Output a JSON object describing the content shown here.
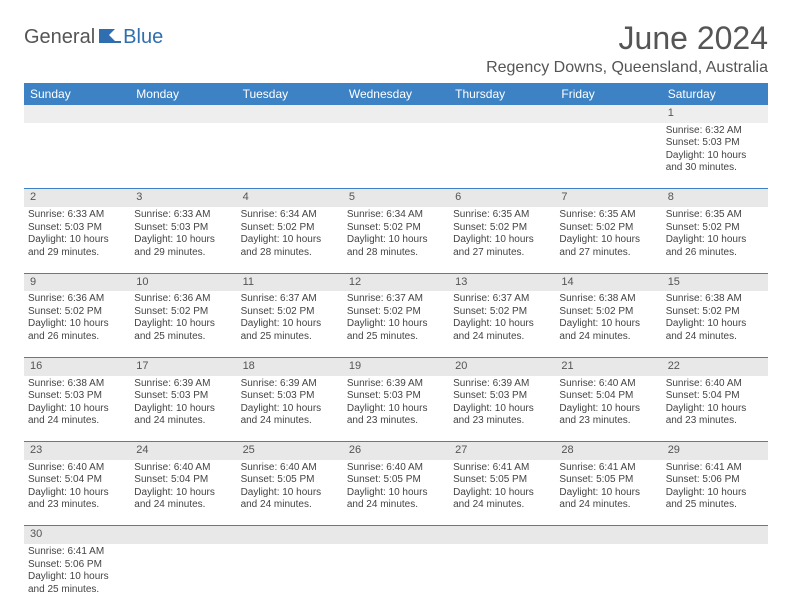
{
  "logo": {
    "general": "General",
    "blue": "Blue"
  },
  "title": "June 2024",
  "location": "Regency Downs, Queensland, Australia",
  "colors": {
    "header_bg": "#3d82c4",
    "header_fg": "#ffffff",
    "daynum_bg": "#e8e8e8",
    "rule": "#3d82c4",
    "title_color": "#555555"
  },
  "day_labels": [
    "Sunday",
    "Monday",
    "Tuesday",
    "Wednesday",
    "Thursday",
    "Friday",
    "Saturday"
  ],
  "weeks": [
    {
      "nums": [
        "",
        "",
        "",
        "",
        "",
        "",
        "1"
      ],
      "cells": [
        null,
        null,
        null,
        null,
        null,
        null,
        {
          "sunrise": "Sunrise: 6:32 AM",
          "sunset": "Sunset: 5:03 PM",
          "daylight": "Daylight: 10 hours and 30 minutes."
        }
      ]
    },
    {
      "nums": [
        "2",
        "3",
        "4",
        "5",
        "6",
        "7",
        "8"
      ],
      "cells": [
        {
          "sunrise": "Sunrise: 6:33 AM",
          "sunset": "Sunset: 5:03 PM",
          "daylight": "Daylight: 10 hours and 29 minutes."
        },
        {
          "sunrise": "Sunrise: 6:33 AM",
          "sunset": "Sunset: 5:03 PM",
          "daylight": "Daylight: 10 hours and 29 minutes."
        },
        {
          "sunrise": "Sunrise: 6:34 AM",
          "sunset": "Sunset: 5:02 PM",
          "daylight": "Daylight: 10 hours and 28 minutes."
        },
        {
          "sunrise": "Sunrise: 6:34 AM",
          "sunset": "Sunset: 5:02 PM",
          "daylight": "Daylight: 10 hours and 28 minutes."
        },
        {
          "sunrise": "Sunrise: 6:35 AM",
          "sunset": "Sunset: 5:02 PM",
          "daylight": "Daylight: 10 hours and 27 minutes."
        },
        {
          "sunrise": "Sunrise: 6:35 AM",
          "sunset": "Sunset: 5:02 PM",
          "daylight": "Daylight: 10 hours and 27 minutes."
        },
        {
          "sunrise": "Sunrise: 6:35 AM",
          "sunset": "Sunset: 5:02 PM",
          "daylight": "Daylight: 10 hours and 26 minutes."
        }
      ]
    },
    {
      "nums": [
        "9",
        "10",
        "11",
        "12",
        "13",
        "14",
        "15"
      ],
      "cells": [
        {
          "sunrise": "Sunrise: 6:36 AM",
          "sunset": "Sunset: 5:02 PM",
          "daylight": "Daylight: 10 hours and 26 minutes."
        },
        {
          "sunrise": "Sunrise: 6:36 AM",
          "sunset": "Sunset: 5:02 PM",
          "daylight": "Daylight: 10 hours and 25 minutes."
        },
        {
          "sunrise": "Sunrise: 6:37 AM",
          "sunset": "Sunset: 5:02 PM",
          "daylight": "Daylight: 10 hours and 25 minutes."
        },
        {
          "sunrise": "Sunrise: 6:37 AM",
          "sunset": "Sunset: 5:02 PM",
          "daylight": "Daylight: 10 hours and 25 minutes."
        },
        {
          "sunrise": "Sunrise: 6:37 AM",
          "sunset": "Sunset: 5:02 PM",
          "daylight": "Daylight: 10 hours and 24 minutes."
        },
        {
          "sunrise": "Sunrise: 6:38 AM",
          "sunset": "Sunset: 5:02 PM",
          "daylight": "Daylight: 10 hours and 24 minutes."
        },
        {
          "sunrise": "Sunrise: 6:38 AM",
          "sunset": "Sunset: 5:02 PM",
          "daylight": "Daylight: 10 hours and 24 minutes."
        }
      ]
    },
    {
      "nums": [
        "16",
        "17",
        "18",
        "19",
        "20",
        "21",
        "22"
      ],
      "cells": [
        {
          "sunrise": "Sunrise: 6:38 AM",
          "sunset": "Sunset: 5:03 PM",
          "daylight": "Daylight: 10 hours and 24 minutes."
        },
        {
          "sunrise": "Sunrise: 6:39 AM",
          "sunset": "Sunset: 5:03 PM",
          "daylight": "Daylight: 10 hours and 24 minutes."
        },
        {
          "sunrise": "Sunrise: 6:39 AM",
          "sunset": "Sunset: 5:03 PM",
          "daylight": "Daylight: 10 hours and 24 minutes."
        },
        {
          "sunrise": "Sunrise: 6:39 AM",
          "sunset": "Sunset: 5:03 PM",
          "daylight": "Daylight: 10 hours and 23 minutes."
        },
        {
          "sunrise": "Sunrise: 6:39 AM",
          "sunset": "Sunset: 5:03 PM",
          "daylight": "Daylight: 10 hours and 23 minutes."
        },
        {
          "sunrise": "Sunrise: 6:40 AM",
          "sunset": "Sunset: 5:04 PM",
          "daylight": "Daylight: 10 hours and 23 minutes."
        },
        {
          "sunrise": "Sunrise: 6:40 AM",
          "sunset": "Sunset: 5:04 PM",
          "daylight": "Daylight: 10 hours and 23 minutes."
        }
      ]
    },
    {
      "nums": [
        "23",
        "24",
        "25",
        "26",
        "27",
        "28",
        "29"
      ],
      "cells": [
        {
          "sunrise": "Sunrise: 6:40 AM",
          "sunset": "Sunset: 5:04 PM",
          "daylight": "Daylight: 10 hours and 23 minutes."
        },
        {
          "sunrise": "Sunrise: 6:40 AM",
          "sunset": "Sunset: 5:04 PM",
          "daylight": "Daylight: 10 hours and 24 minutes."
        },
        {
          "sunrise": "Sunrise: 6:40 AM",
          "sunset": "Sunset: 5:05 PM",
          "daylight": "Daylight: 10 hours and 24 minutes."
        },
        {
          "sunrise": "Sunrise: 6:40 AM",
          "sunset": "Sunset: 5:05 PM",
          "daylight": "Daylight: 10 hours and 24 minutes."
        },
        {
          "sunrise": "Sunrise: 6:41 AM",
          "sunset": "Sunset: 5:05 PM",
          "daylight": "Daylight: 10 hours and 24 minutes."
        },
        {
          "sunrise": "Sunrise: 6:41 AM",
          "sunset": "Sunset: 5:05 PM",
          "daylight": "Daylight: 10 hours and 24 minutes."
        },
        {
          "sunrise": "Sunrise: 6:41 AM",
          "sunset": "Sunset: 5:06 PM",
          "daylight": "Daylight: 10 hours and 25 minutes."
        }
      ]
    },
    {
      "nums": [
        "30",
        "",
        "",
        "",
        "",
        "",
        ""
      ],
      "cells": [
        {
          "sunrise": "Sunrise: 6:41 AM",
          "sunset": "Sunset: 5:06 PM",
          "daylight": "Daylight: 10 hours and 25 minutes."
        },
        null,
        null,
        null,
        null,
        null,
        null
      ]
    }
  ]
}
